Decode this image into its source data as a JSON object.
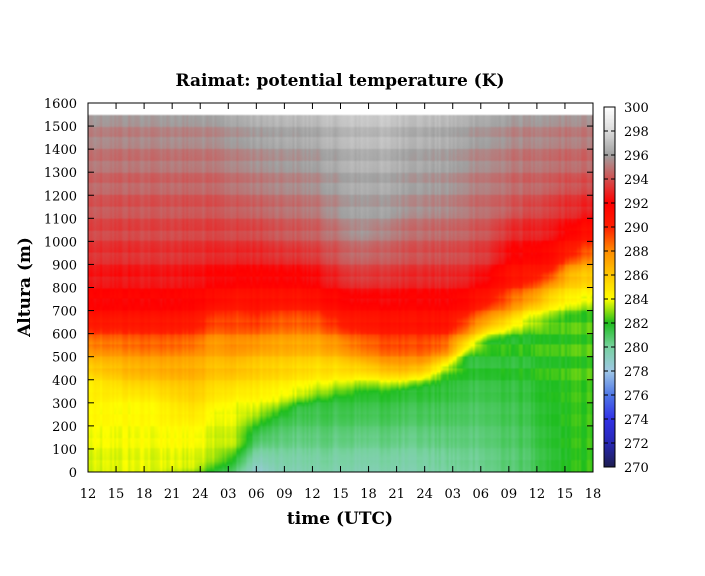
{
  "chart_data": {
    "type": "heatmap",
    "title": "Raimat: potential temperature (K)",
    "xlabel": "time (UTC)",
    "ylabel": "Altura (m)",
    "x_tick_labels": [
      "12",
      "15",
      "18",
      "21",
      "24",
      "03",
      "06",
      "09",
      "12",
      "15",
      "18",
      "21",
      "24",
      "03",
      "06",
      "09",
      "12",
      "15",
      "18"
    ],
    "y_ticks": [
      0,
      100,
      200,
      300,
      400,
      500,
      600,
      700,
      800,
      900,
      1000,
      1100,
      1200,
      1300,
      1400,
      1500,
      1600
    ],
    "ylim": [
      0,
      1600
    ],
    "colorbar": {
      "range": [
        270,
        300
      ],
      "ticks": [
        270,
        272,
        274,
        276,
        278,
        280,
        282,
        284,
        286,
        288,
        290,
        292,
        294,
        296,
        298,
        300
      ],
      "color_stops": [
        {
          "value": 270,
          "color": "#1e1e50"
        },
        {
          "value": 272,
          "color": "#2828b4"
        },
        {
          "value": 274,
          "color": "#3232e6"
        },
        {
          "value": 276,
          "color": "#5078e6"
        },
        {
          "value": 278,
          "color": "#a0c8e6"
        },
        {
          "value": 280,
          "color": "#78d2a0"
        },
        {
          "value": 282,
          "color": "#1ebe1e"
        },
        {
          "value": 284,
          "color": "#ffff00"
        },
        {
          "value": 286,
          "color": "#ffc800"
        },
        {
          "value": 288,
          "color": "#ff8c00"
        },
        {
          "value": 290,
          "color": "#ff1e00"
        },
        {
          "value": 292,
          "color": "#ff0000"
        },
        {
          "value": 294,
          "color": "#d25050"
        },
        {
          "value": 296,
          "color": "#a0a0a0"
        },
        {
          "value": 298,
          "color": "#dcdcdc"
        },
        {
          "value": 300,
          "color": "#ffffff"
        }
      ]
    },
    "data_top_height": 1550,
    "field_profiles": [
      {
        "t": 0,
        "profile": [
          [
            0,
            283.4
          ],
          [
            400,
            284.6
          ],
          [
            700,
            291.5
          ],
          [
            1000,
            293.5
          ],
          [
            1200,
            294.3
          ],
          [
            1550,
            295.6
          ]
        ]
      },
      {
        "t": 2,
        "profile": [
          [
            0,
            283.7
          ],
          [
            300,
            284.2
          ],
          [
            500,
            287.5
          ],
          [
            700,
            291.5
          ],
          [
            1000,
            293.5
          ],
          [
            1200,
            294.3
          ],
          [
            1550,
            295.6
          ]
        ]
      },
      {
        "t": 3,
        "profile": [
          [
            0,
            283.6
          ],
          [
            300,
            284.3
          ],
          [
            500,
            287.7
          ],
          [
            700,
            291.6
          ],
          [
            1000,
            293.6
          ],
          [
            1200,
            294.3
          ],
          [
            1550,
            295.7
          ]
        ]
      },
      {
        "t": 5,
        "profile": [
          [
            0,
            283.0
          ],
          [
            20,
            283.6
          ],
          [
            200,
            284.3
          ],
          [
            500,
            287.5
          ],
          [
            700,
            291.4
          ],
          [
            1000,
            293.5
          ],
          [
            1200,
            294.3
          ],
          [
            1550,
            295.8
          ]
        ]
      },
      {
        "t": 6,
        "profile": [
          [
            0,
            281.7
          ],
          [
            60,
            283.4
          ],
          [
            250,
            284.0
          ],
          [
            550,
            287.5
          ],
          [
            750,
            291.4
          ],
          [
            1000,
            293.5
          ],
          [
            1200,
            294.4
          ],
          [
            1550,
            296.0
          ]
        ]
      },
      {
        "t": 7,
        "profile": [
          [
            0,
            280.5
          ],
          [
            120,
            283.3
          ],
          [
            300,
            284.0
          ],
          [
            550,
            287.8
          ],
          [
            800,
            291.5
          ],
          [
            1000,
            293.5
          ],
          [
            1200,
            294.6
          ],
          [
            1550,
            296.2
          ]
        ]
      },
      {
        "t": 8,
        "profile": [
          [
            0,
            278.4
          ],
          [
            200,
            282.0
          ],
          [
            260,
            283.5
          ],
          [
            500,
            286.5
          ],
          [
            700,
            290.5
          ],
          [
            1000,
            293.5
          ],
          [
            1200,
            294.8
          ],
          [
            1550,
            296.5
          ]
        ]
      },
      {
        "t": 9,
        "profile": [
          [
            0,
            279.2
          ],
          [
            230,
            281.4
          ],
          [
            300,
            283.5
          ],
          [
            550,
            287.0
          ],
          [
            750,
            290.8
          ],
          [
            1000,
            293.8
          ],
          [
            1200,
            295.0
          ],
          [
            1550,
            296.6
          ]
        ]
      },
      {
        "t": 10,
        "profile": [
          [
            0,
            279.4
          ],
          [
            280,
            281.5
          ],
          [
            330,
            283.5
          ],
          [
            550,
            287.0
          ],
          [
            750,
            290.8
          ],
          [
            1000,
            294.0
          ],
          [
            1200,
            295.2
          ],
          [
            1550,
            296.7
          ]
        ]
      },
      {
        "t": 11,
        "profile": [
          [
            0,
            279.6
          ],
          [
            300,
            281.6
          ],
          [
            360,
            283.5
          ],
          [
            550,
            287.0
          ],
          [
            750,
            291.2
          ],
          [
            1000,
            294.2
          ],
          [
            1200,
            295.4
          ],
          [
            1550,
            296.8
          ]
        ]
      },
      {
        "t": 12,
        "profile": [
          [
            0,
            279.5
          ],
          [
            320,
            281.7
          ],
          [
            380,
            283.6
          ],
          [
            540,
            287.5
          ],
          [
            680,
            290.8
          ],
          [
            900,
            293.8
          ],
          [
            1100,
            295.6
          ],
          [
            1550,
            297.0
          ]
        ]
      },
      {
        "t": 13,
        "profile": [
          [
            0,
            279.4
          ],
          [
            340,
            281.8
          ],
          [
            400,
            283.8
          ],
          [
            500,
            287.5
          ],
          [
            650,
            290.6
          ],
          [
            850,
            293.6
          ],
          [
            1050,
            295.8
          ],
          [
            1550,
            297.2
          ]
        ]
      },
      {
        "t": 14,
        "profile": [
          [
            0,
            279.5
          ],
          [
            340,
            281.8
          ],
          [
            390,
            283.7
          ],
          [
            480,
            287.7
          ],
          [
            640,
            290.7
          ],
          [
            880,
            293.7
          ],
          [
            1100,
            295.8
          ],
          [
            1550,
            297.2
          ]
        ]
      },
      {
        "t": 15,
        "profile": [
          [
            0,
            279.5
          ],
          [
            350,
            281.8
          ],
          [
            390,
            283.8
          ],
          [
            470,
            287.8
          ],
          [
            640,
            290.8
          ],
          [
            900,
            293.8
          ],
          [
            1150,
            295.8
          ],
          [
            1550,
            297.0
          ]
        ]
      },
      {
        "t": 16,
        "profile": [
          [
            0,
            279.6
          ],
          [
            370,
            281.8
          ],
          [
            410,
            283.8
          ],
          [
            480,
            287.8
          ],
          [
            640,
            290.8
          ],
          [
            900,
            293.6
          ],
          [
            1150,
            295.5
          ],
          [
            1550,
            296.8
          ]
        ]
      },
      {
        "t": 17,
        "profile": [
          [
            0,
            279.8
          ],
          [
            420,
            281.9
          ],
          [
            460,
            284.0
          ],
          [
            520,
            287.8
          ],
          [
            640,
            290.8
          ],
          [
            880,
            293.4
          ],
          [
            1150,
            295.4
          ],
          [
            1550,
            296.7
          ]
        ]
      },
      {
        "t": 18,
        "profile": [
          [
            0,
            280.0
          ],
          [
            500,
            281.9
          ],
          [
            540,
            284.0
          ],
          [
            600,
            287.6
          ],
          [
            700,
            290.8
          ],
          [
            880,
            293.3
          ],
          [
            1100,
            294.8
          ],
          [
            1550,
            296.4
          ]
        ]
      },
      {
        "t": 19,
        "profile": [
          [
            0,
            280.2
          ],
          [
            560,
            282.0
          ],
          [
            600,
            284.0
          ],
          [
            660,
            287.5
          ],
          [
            760,
            290.8
          ],
          [
            900,
            293.0
          ],
          [
            1100,
            294.5
          ],
          [
            1550,
            296.2
          ]
        ]
      },
      {
        "t": 20,
        "profile": [
          [
            0,
            280.5
          ],
          [
            580,
            282.0
          ],
          [
            630,
            284.0
          ],
          [
            700,
            287.5
          ],
          [
            820,
            290.5
          ],
          [
            980,
            292.5
          ],
          [
            1150,
            294.3
          ],
          [
            1550,
            295.8
          ]
        ]
      },
      {
        "t": 21,
        "profile": [
          [
            0,
            280.8
          ],
          [
            600,
            282.1
          ],
          [
            680,
            284.2
          ],
          [
            750,
            287.5
          ],
          [
            850,
            290.5
          ],
          [
            1000,
            292.5
          ],
          [
            1200,
            294.3
          ],
          [
            1550,
            295.7
          ]
        ]
      },
      {
        "t": 22,
        "profile": [
          [
            0,
            281.5
          ],
          [
            640,
            282.2
          ],
          [
            720,
            284.3
          ],
          [
            800,
            286.8
          ],
          [
            880,
            290.5
          ],
          [
            1050,
            292.7
          ],
          [
            1250,
            294.3
          ],
          [
            1550,
            295.6
          ]
        ]
      },
      {
        "t": 23,
        "profile": [
          [
            0,
            282.0
          ],
          [
            680,
            282.3
          ],
          [
            760,
            284.5
          ],
          [
            860,
            286.5
          ],
          [
            950,
            290.0
          ],
          [
            1100,
            292.7
          ],
          [
            1300,
            294.4
          ],
          [
            1550,
            295.5
          ]
        ]
      },
      {
        "t": 24,
        "profile": [
          [
            0,
            282.2
          ],
          [
            700,
            282.4
          ],
          [
            780,
            284.6
          ],
          [
            880,
            286.4
          ],
          [
            1000,
            290.0
          ],
          [
            1150,
            292.8
          ],
          [
            1300,
            294.4
          ],
          [
            1550,
            295.5
          ]
        ]
      }
    ]
  }
}
